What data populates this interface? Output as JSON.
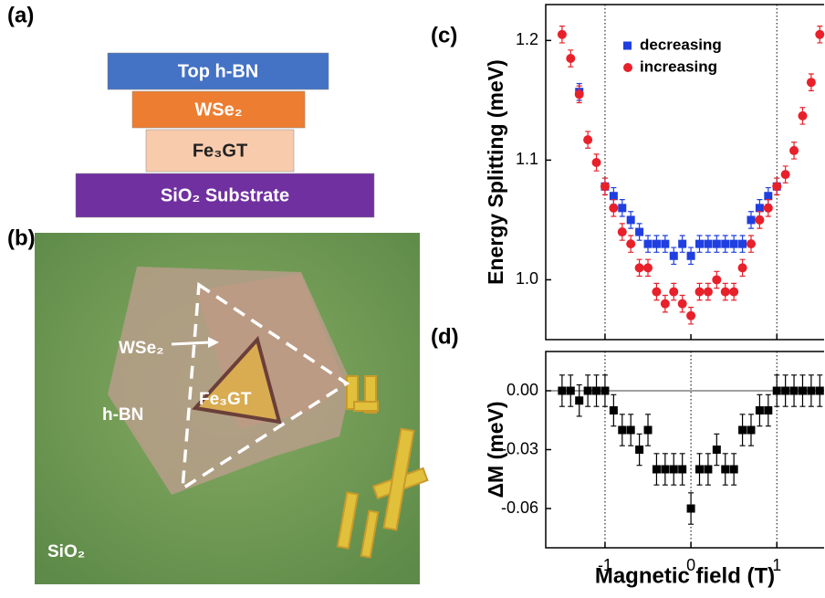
{
  "panel_a": {
    "label": "(a)",
    "layers": [
      {
        "name": "Top h-BN",
        "color": "#4472c4"
      },
      {
        "name": "WSe₂",
        "color": "#ed7d31"
      },
      {
        "name": "Fe₃GT",
        "color": "#f8cbad"
      },
      {
        "name": "SiO₂ Substrate",
        "color": "#7030a0"
      }
    ]
  },
  "panel_b": {
    "label": "(b)",
    "labels": [
      "WSe₂",
      "h-BN",
      "Fe₃GT",
      "SiO₂"
    ]
  },
  "chart_data": [
    {
      "type": "scatter",
      "panel_label": "(c)",
      "ylabel": "Energy Splitting (meV)",
      "xlim": [
        -1.69,
        1.55
      ],
      "ylim": [
        0.95,
        1.23
      ],
      "xticks": [
        -1,
        0,
        1
      ],
      "yticks": [
        {
          "value": 1.0,
          "label": "1.0"
        },
        {
          "value": 1.1,
          "label": "1.1"
        },
        {
          "value": 1.2,
          "label": "1.2"
        }
      ],
      "vlines": [
        -1,
        1
      ],
      "legend": "upper right",
      "series": [
        {
          "name": "decreasing",
          "color": "#1f3fe0",
          "marker": "square",
          "error": 0.007,
          "x": [
            -1.3,
            -1.0,
            -0.9,
            -0.8,
            -0.7,
            -0.6,
            -0.5,
            -0.4,
            -0.3,
            -0.2,
            -0.1,
            0,
            0.1,
            0.2,
            0.3,
            0.4,
            0.5,
            0.6,
            0.7,
            0.8,
            0.9,
            1.0
          ],
          "values": [
            1.157,
            1.078,
            1.07,
            1.06,
            1.05,
            1.04,
            1.03,
            1.03,
            1.03,
            1.02,
            1.03,
            1.02,
            1.03,
            1.03,
            1.03,
            1.03,
            1.03,
            1.03,
            1.05,
            1.06,
            1.07,
            1.078
          ]
        },
        {
          "name": "increasing",
          "color": "#e8202a",
          "marker": "circle",
          "error": 0.007,
          "x": [
            -1.5,
            -1.4,
            -1.3,
            -1.2,
            -1.1,
            -1.0,
            -0.9,
            -0.8,
            -0.7,
            -0.6,
            -0.5,
            -0.4,
            -0.3,
            -0.2,
            -0.1,
            0,
            0.1,
            0.2,
            0.3,
            0.4,
            0.5,
            0.6,
            0.7,
            0.8,
            0.9,
            1.0,
            1.1,
            1.2,
            1.3,
            1.4,
            1.5
          ],
          "values": [
            1.205,
            1.185,
            1.155,
            1.117,
            1.098,
            1.078,
            1.06,
            1.04,
            1.03,
            1.01,
            1.01,
            0.99,
            0.98,
            0.99,
            0.98,
            0.97,
            0.99,
            0.99,
            1.0,
            0.99,
            0.99,
            1.01,
            1.03,
            1.05,
            1.06,
            1.078,
            1.088,
            1.108,
            1.137,
            1.165,
            1.205
          ]
        }
      ]
    },
    {
      "type": "scatter",
      "panel_label": "(d)",
      "ylabel": "ΔM (meV)",
      "xlabel": "Magnetic field (T)",
      "xlim": [
        -1.69,
        1.55
      ],
      "ylim": [
        -0.08,
        0.02
      ],
      "xticks": [
        -1,
        0,
        1
      ],
      "yticks": [
        {
          "value": 0,
          "label": "0.00"
        },
        {
          "value": -0.03,
          "label": "-0.03"
        },
        {
          "value": -0.06,
          "label": "-0.06"
        }
      ],
      "vlines": [
        -1,
        0,
        1
      ],
      "hlines": [
        0
      ],
      "series": [
        {
          "color": "#000000",
          "marker": "square",
          "error": 0.008,
          "x": [
            -1.5,
            -1.4,
            -1.3,
            -1.2,
            -1.1,
            -1.0,
            -0.9,
            -0.8,
            -0.7,
            -0.6,
            -0.5,
            -0.4,
            -0.3,
            -0.2,
            -0.1,
            0,
            0.1,
            0.2,
            0.3,
            0.4,
            0.5,
            0.6,
            0.7,
            0.8,
            0.9,
            1.0,
            1.1,
            1.2,
            1.3,
            1.4,
            1.5
          ],
          "values": [
            0,
            0,
            -0.005,
            0,
            0,
            0,
            -0.01,
            -0.02,
            -0.02,
            -0.03,
            -0.02,
            -0.04,
            -0.04,
            -0.04,
            -0.04,
            -0.06,
            -0.04,
            -0.04,
            -0.03,
            -0.04,
            -0.04,
            -0.02,
            -0.02,
            -0.01,
            -0.01,
            0,
            0,
            0,
            0,
            0,
            0
          ]
        }
      ]
    }
  ]
}
